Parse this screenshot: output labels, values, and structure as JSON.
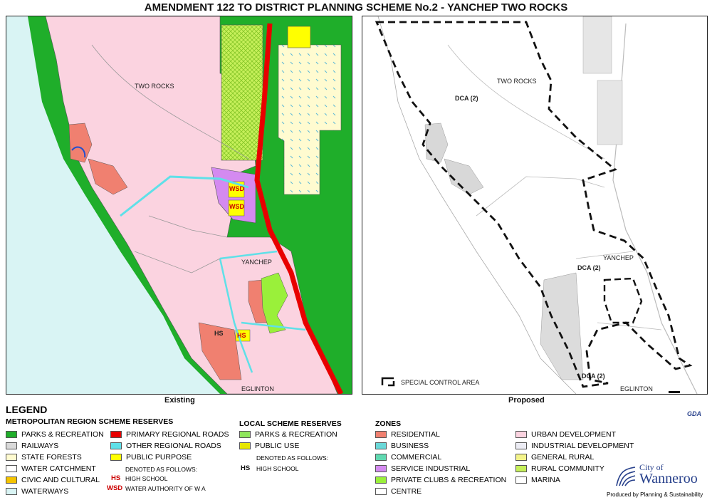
{
  "title": "AMENDMENT 122 TO DISTRICT PLANNING SCHEME No.2 - YANCHEP TWO ROCKS",
  "maps": {
    "existing": {
      "caption": "Existing",
      "labels": {
        "two_rocks": "TWO ROCKS",
        "yanchep": "YANCHEP",
        "eglinton": "EGLINTON",
        "wsd1": "WSD",
        "wsd2": "WSD",
        "hs1": "HS",
        "hs2": "HS"
      }
    },
    "proposed": {
      "caption": "Proposed",
      "labels": {
        "two_rocks": "TWO ROCKS",
        "yanchep": "YANCHEP",
        "eglinton": "EGLINTON",
        "dca1": "DCA (2)",
        "dca2": "DCA (2)",
        "dca3": "DCA (2)"
      },
      "special_control_area": "SPECIAL CONTROL AREA"
    }
  },
  "legend": {
    "title": "LEGEND",
    "mrs": {
      "heading": "METROPOLITAN REGION SCHEME RESERVES",
      "col1": [
        {
          "label": "PARKS & RECREATION",
          "color": "#1fae2a"
        },
        {
          "label": "RAILWAYS",
          "color": "#d9d9d9"
        },
        {
          "label": "STATE FORESTS",
          "color": "#fffbd0"
        },
        {
          "label": "WATER CATCHMENT",
          "color": "#ffffff"
        },
        {
          "label": "CIVIC AND CULTURAL",
          "color": "#f5c400"
        },
        {
          "label": "WATERWAYS",
          "color": "#d9f4f4"
        }
      ],
      "col2": [
        {
          "label": "PRIMARY REGIONAL ROADS",
          "color": "#e80000"
        },
        {
          "label": "OTHER REGIONAL ROADS",
          "color": "#5fe0e8"
        },
        {
          "label": "PUBLIC PURPOSE",
          "color": "#ffff00"
        }
      ],
      "denoted": "DENOTED AS FOLLOWS:",
      "abbrev": [
        {
          "code": "HS",
          "text": "HIGH SCHOOL"
        },
        {
          "code": "WSD",
          "text": "WATER AUTHORITY OF W A"
        }
      ]
    },
    "lsr": {
      "heading": "LOCAL SCHEME RESERVES",
      "items": [
        {
          "label": "PARKS & RECREATION",
          "color": "#8ee65a"
        },
        {
          "label": "PUBLIC USE",
          "color": "#e6e600"
        }
      ],
      "denoted": "DENOTED AS FOLLOWS:",
      "abbrev": [
        {
          "code": "HS",
          "text": "HIGH SCHOOL"
        }
      ]
    },
    "zones": {
      "heading": "ZONES",
      "col1": [
        {
          "label": "RESIDENTIAL",
          "color": "#f08070"
        },
        {
          "label": "BUSINESS",
          "color": "#6ad8d8"
        },
        {
          "label": "COMMERCIAL",
          "color": "#5fd8b0"
        },
        {
          "label": "SERVICE INDUSTRIAL",
          "color": "#d48af0"
        },
        {
          "label": "PRIVATE CLUBS & RECREATION",
          "color": "#9af03a"
        },
        {
          "label": "CENTRE",
          "color": "#ffffff"
        }
      ],
      "col2": [
        {
          "label": "URBAN DEVELOPMENT",
          "color": "#fbd3e0"
        },
        {
          "label": "INDUSTRIAL DEVELOPMENT",
          "color": "#ececf4"
        },
        {
          "label": "GENERAL RURAL",
          "color": "#f3f38a"
        },
        {
          "label": "RURAL COMMUNITY",
          "color": "#c6f05a"
        },
        {
          "label": "MARINA",
          "color": "#ffffff"
        }
      ]
    }
  },
  "branding": {
    "gda": "GDA",
    "city_of": "City of",
    "city_name": "Wanneroo",
    "produced_by": "Produced by Planning & Sustainability"
  }
}
